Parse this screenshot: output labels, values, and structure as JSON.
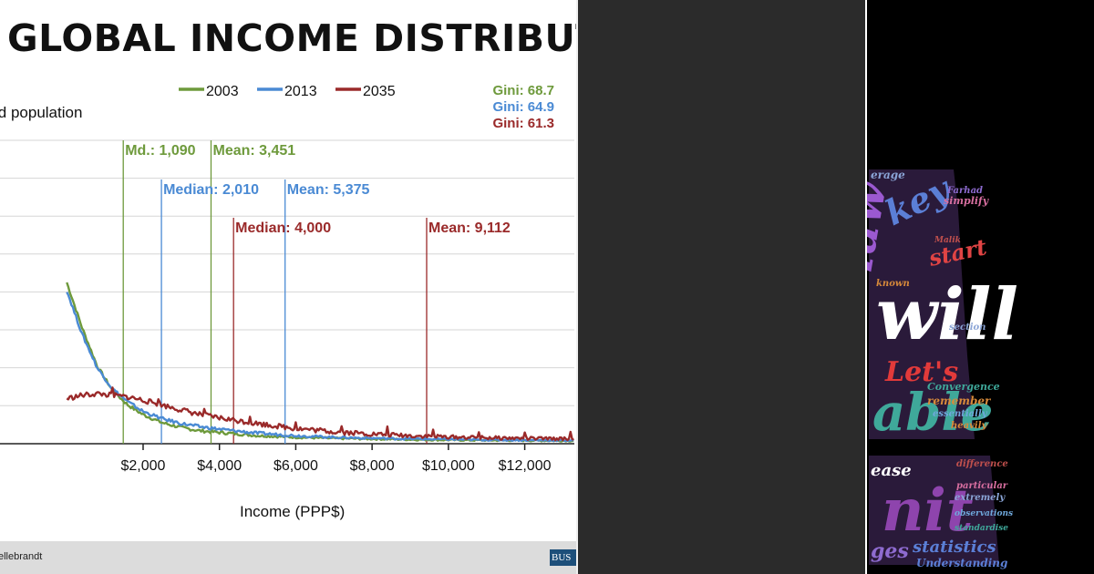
{
  "title": "GLOBAL INCOME DISTRIBUTION",
  "footer": {
    "credit": "ellebrandt",
    "brand": "BUS"
  },
  "chart_data": {
    "type": "line",
    "title": "GLOBAL INCOME DISTRIBUTION",
    "ylabel": "ld population",
    "xlabel": "Income (PPP$)",
    "xlim": [
      0,
      13300
    ],
    "x_ticks": [
      2000,
      4000,
      6000,
      8000,
      10000,
      12000
    ],
    "x_tick_labels": [
      "$2,000",
      "$4,000",
      "$6,000",
      "$8,000",
      "$10,000",
      "$12,000"
    ],
    "legend": [
      "2003",
      "2013",
      "2035"
    ],
    "legend_position": "top",
    "grid": true,
    "series": [
      {
        "name": "2003",
        "color": "#6e9a3c",
        "x": [
          0,
          400,
          800,
          1200,
          1600,
          2000,
          2500,
          3000,
          3500,
          4000,
          5000,
          6000,
          7000,
          8000,
          9000,
          10000,
          11000,
          12000,
          13300
        ],
        "y": [
          100,
          72,
          48,
          33,
          24,
          18,
          13,
          10,
          8,
          7,
          5,
          4,
          3.3,
          3,
          2.6,
          2.3,
          2.1,
          2,
          1.8
        ]
      },
      {
        "name": "2013",
        "color": "#4a8ad4",
        "x": [
          0,
          400,
          800,
          1200,
          1600,
          2000,
          2500,
          3000,
          3500,
          4000,
          5000,
          6000,
          7000,
          8000,
          9000,
          10000,
          11000,
          12000,
          13300
        ],
        "y": [
          95,
          68,
          47,
          34,
          26,
          20,
          15.5,
          12.5,
          10.5,
          9,
          6.5,
          5,
          4,
          3.4,
          3,
          2.7,
          2.4,
          2.2,
          2
        ]
      },
      {
        "name": "2035",
        "color": "#9a2a2a",
        "x": [
          0,
          400,
          800,
          1200,
          1600,
          2000,
          2500,
          3000,
          3500,
          4000,
          5000,
          6000,
          7000,
          8000,
          9000,
          10000,
          11000,
          12000,
          13300
        ],
        "y": [
          28,
          30,
          31,
          30,
          29,
          27,
          24,
          21,
          18,
          16,
          12.5,
          9.5,
          7.5,
          6,
          5,
          4.2,
          3.7,
          3.3,
          3
        ]
      }
    ],
    "annotations": [
      {
        "label": "Md.: 1,090",
        "x": 1480,
        "color": "#6e9a3c",
        "level": 1
      },
      {
        "label": "Mean: 3,451",
        "x": 3780,
        "color": "#6e9a3c",
        "level": 1
      },
      {
        "label": "Median: 2,010",
        "x": 2480,
        "color": "#4a8ad4",
        "level": 2
      },
      {
        "label": "Mean: 5,375",
        "x": 5720,
        "color": "#4a8ad4",
        "level": 2
      },
      {
        "label": "Median: 4,000",
        "x": 4370,
        "color": "#9a2a2a",
        "level": 3
      },
      {
        "label": "Mean: 9,112",
        "x": 9430,
        "color": "#9a2a2a",
        "level": 3
      }
    ],
    "gini": [
      {
        "label": "Gini: 68.7",
        "color": "#6e9a3c"
      },
      {
        "label": "Gini: 64.9",
        "color": "#4a8ad4"
      },
      {
        "label": "Gini: 61.3",
        "color": "#9a2a2a"
      }
    ]
  },
  "wordcloud": {
    "words": [
      {
        "text": "will",
        "color": "#ffffff"
      },
      {
        "text": "Let's",
        "color": "#e23a3a"
      },
      {
        "text": "law",
        "color": "#9b59d0"
      },
      {
        "text": "key",
        "color": "#5b7fd6"
      },
      {
        "text": "start",
        "color": "#e04444"
      },
      {
        "text": "able",
        "color": "#3fa89a"
      },
      {
        "text": "nit",
        "color": "#8e44ad"
      },
      {
        "text": "ease",
        "color": "#ffffff"
      },
      {
        "text": "statistics",
        "color": "#5b7fd6"
      },
      {
        "text": "ges",
        "color": "#8e6bd0"
      },
      {
        "text": "remember",
        "color": "#d88a3a"
      },
      {
        "text": "Convergence",
        "color": "#3fa89a"
      },
      {
        "text": "difference",
        "color": "#c0504d"
      },
      {
        "text": "particular",
        "color": "#d86fa0"
      },
      {
        "text": "extremely",
        "color": "#8aa4d6"
      },
      {
        "text": "observations",
        "color": "#6fa8dc"
      },
      {
        "text": "standardise",
        "color": "#3fa89a"
      },
      {
        "text": "Understanding",
        "color": "#5b7fd6"
      },
      {
        "text": "essentially",
        "color": "#6fa8dc"
      },
      {
        "text": "heavily",
        "color": "#d88a3a"
      },
      {
        "text": "section",
        "color": "#8aa4d6"
      },
      {
        "text": "known",
        "color": "#d88a3a"
      },
      {
        "text": "simplify",
        "color": "#d86fa0"
      },
      {
        "text": "Farhad",
        "color": "#8e6bd0"
      },
      {
        "text": "Malik",
        "color": "#c0504d"
      },
      {
        "text": "erage",
        "color": "#8aa4d6"
      }
    ]
  }
}
